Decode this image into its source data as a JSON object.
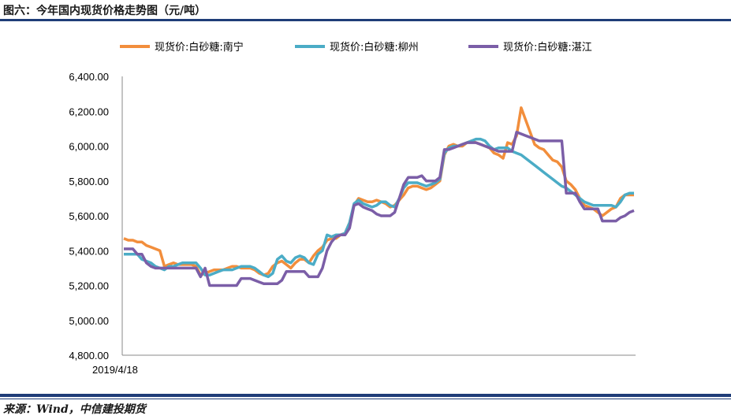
{
  "header": {
    "title": "图六：今年国内现货价格走势图（元/吨）"
  },
  "footer": {
    "source": "来源：Wind，中信建投期货"
  },
  "chart_data": {
    "type": "line",
    "title": "今年国内现货价格走势图（元/吨）",
    "xlabel": "",
    "ylabel": "",
    "ylim": [
      4800,
      6400
    ],
    "yticks": [
      "6,400.00",
      "6,200.00",
      "6,000.00",
      "5,800.00",
      "5,600.00",
      "5,400.00",
      "5,200.00",
      "5,000.00",
      "4,800.00"
    ],
    "ytick_values": [
      6400,
      6200,
      6000,
      5800,
      5600,
      5400,
      5200,
      5000,
      4800
    ],
    "x_label_shown": "2019/4/18",
    "grid": false,
    "legend_position": "top",
    "series": [
      {
        "name": "现货价:白砂糖:南宁",
        "color": "#f28e3c",
        "values": [
          5470,
          5460,
          5460,
          5450,
          5450,
          5430,
          5420,
          5410,
          5400,
          5310,
          5320,
          5330,
          5320,
          5320,
          5320,
          5320,
          5310,
          5260,
          5270,
          5280,
          5290,
          5290,
          5290,
          5300,
          5310,
          5310,
          5300,
          5300,
          5300,
          5290,
          5270,
          5260,
          5270,
          5310,
          5330,
          5340,
          5320,
          5300,
          5330,
          5350,
          5350,
          5330,
          5370,
          5400,
          5420,
          5460,
          5470,
          5470,
          5490,
          5500,
          5560,
          5660,
          5700,
          5690,
          5680,
          5680,
          5690,
          5680,
          5670,
          5650,
          5660,
          5690,
          5720,
          5760,
          5770,
          5770,
          5760,
          5750,
          5760,
          5780,
          5800,
          5950,
          6000,
          6010,
          6000,
          6000,
          6020,
          6030,
          6020,
          6010,
          6000,
          5990,
          5960,
          5950,
          5930,
          6020,
          6010,
          6060,
          6220,
          6150,
          6080,
          6010,
          5990,
          5980,
          5950,
          5920,
          5910,
          5880,
          5800,
          5780,
          5750,
          5700,
          5660,
          5650,
          5640,
          5620,
          5600,
          5620,
          5640,
          5650,
          5700,
          5720,
          5720,
          5720
        ],
        "note": ""
      },
      {
        "name": "现货价:白砂糖:柳州",
        "color": "#4bacc6",
        "values": [
          5380,
          5380,
          5380,
          5380,
          5350,
          5340,
          5330,
          5310,
          5300,
          5290,
          5310,
          5310,
          5320,
          5330,
          5330,
          5330,
          5330,
          5300,
          5260,
          5260,
          5270,
          5280,
          5290,
          5290,
          5290,
          5300,
          5310,
          5310,
          5310,
          5300,
          5280,
          5260,
          5250,
          5270,
          5350,
          5370,
          5340,
          5330,
          5360,
          5370,
          5360,
          5330,
          5320,
          5380,
          5400,
          5490,
          5480,
          5490,
          5490,
          5500,
          5560,
          5670,
          5690,
          5670,
          5660,
          5650,
          5660,
          5680,
          5680,
          5660,
          5650,
          5700,
          5760,
          5790,
          5790,
          5790,
          5780,
          5770,
          5780,
          5790,
          5810,
          5960,
          5990,
          6000,
          6000,
          6010,
          6020,
          6030,
          6040,
          6040,
          6030,
          6000,
          5980,
          5990,
          5990,
          5990,
          5970,
          5960,
          5950,
          5930,
          5910,
          5890,
          5870,
          5850,
          5830,
          5810,
          5790,
          5770,
          5760,
          5740,
          5720,
          5700,
          5680,
          5670,
          5660,
          5660,
          5660,
          5660,
          5660,
          5650,
          5680,
          5720,
          5730,
          5730
        ]
      },
      {
        "name": "现货价:白砂糖:湛江",
        "color": "#7b5ea7",
        "values": [
          5410,
          5410,
          5410,
          5380,
          5380,
          5330,
          5310,
          5300,
          5300,
          5300,
          5300,
          5300,
          5300,
          5300,
          5300,
          5300,
          5300,
          5250,
          5300,
          5200,
          5200,
          5200,
          5200,
          5200,
          5200,
          5200,
          5240,
          5240,
          5240,
          5230,
          5220,
          5210,
          5210,
          5210,
          5210,
          5230,
          5280,
          5280,
          5280,
          5280,
          5280,
          5250,
          5250,
          5250,
          5300,
          5400,
          5450,
          5480,
          5490,
          5490,
          5530,
          5660,
          5670,
          5650,
          5640,
          5630,
          5610,
          5600,
          5600,
          5600,
          5620,
          5700,
          5780,
          5820,
          5820,
          5820,
          5830,
          5800,
          5800,
          5800,
          5820,
          5980,
          5980,
          5990,
          6000,
          6010,
          6020,
          6020,
          6020,
          6010,
          6000,
          5990,
          5980,
          5970,
          5970,
          5970,
          5970,
          6080,
          6070,
          6060,
          6050,
          6040,
          6030,
          6030,
          6030,
          6030,
          6030,
          6030,
          5730,
          5730,
          5730,
          5680,
          5640,
          5640,
          5640,
          5640,
          5570,
          5570,
          5570,
          5570,
          5590,
          5600,
          5620,
          5630
        ]
      }
    ]
  }
}
